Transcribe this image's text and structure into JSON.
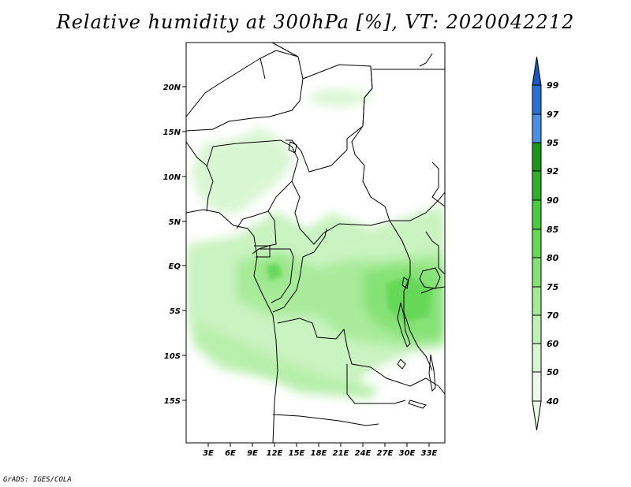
{
  "title": "Relative humidity at 300hPa [%], VT: 2020042212",
  "credit": "GrADS: IGES/COLA",
  "map": {
    "variable": "Relative humidity",
    "level": "300hPa",
    "units": "%",
    "valid_time": "2020042212",
    "lat_ticks": [
      "20N",
      "15N",
      "10N",
      "5N",
      "EQ",
      "5S",
      "10S",
      "15S"
    ],
    "lon_ticks": [
      "3E",
      "6E",
      "9E",
      "12E",
      "15E",
      "18E",
      "21E",
      "24E",
      "27E",
      "30E",
      "33E"
    ]
  },
  "colorbar": {
    "levels": [
      "40",
      "50",
      "60",
      "70",
      "75",
      "80",
      "85",
      "90",
      "92",
      "95",
      "97",
      "99"
    ],
    "colors": {
      "c40_50": "#ecfbe9",
      "c50_60": "#d8f7d2",
      "c60_70": "#c2f1b8",
      "c70_75": "#a6ea98",
      "c75_80": "#86e276",
      "c80_85": "#66d858",
      "c85_90": "#4cc843",
      "c90_92": "#30ae2e",
      "c92_95": "#1e941e",
      "c95_97": "#4a8fe0",
      "c97_99": "#2a6fd4",
      "c99": "#1a56c4"
    }
  }
}
